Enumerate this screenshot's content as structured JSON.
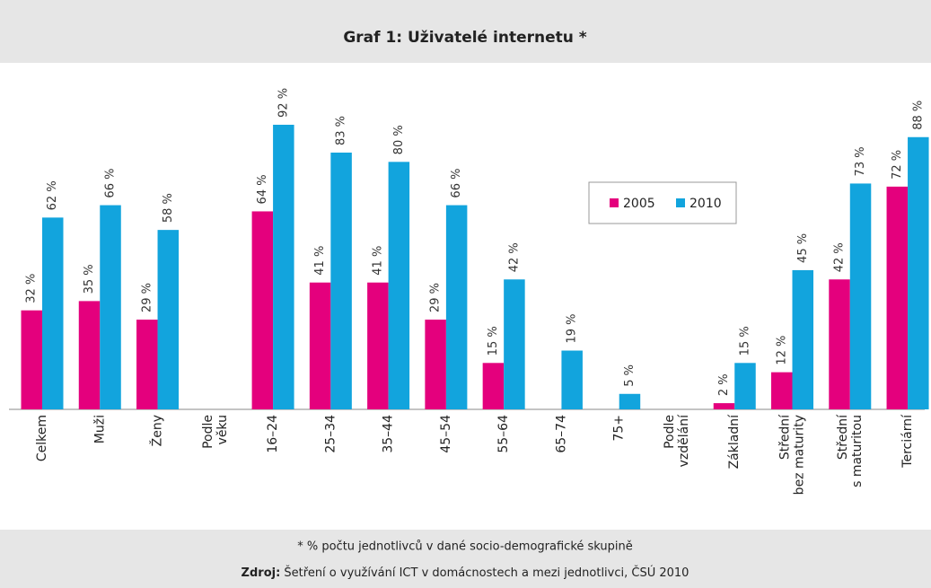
{
  "chart_data": {
    "type": "bar",
    "title": "Graf 1: Uživatelé internetu *",
    "categories": [
      [
        "Celkem"
      ],
      [
        "Muži"
      ],
      [
        "Ženy"
      ],
      [
        "Podle",
        "věku"
      ],
      [
        "16–24"
      ],
      [
        "25–34"
      ],
      [
        "35–44"
      ],
      [
        "45–54"
      ],
      [
        "55–64"
      ],
      [
        "65–74"
      ],
      [
        "75+"
      ],
      [
        "Podle",
        "vzdělání"
      ],
      [
        "Základní"
      ],
      [
        "Střední",
        "bez maturity"
      ],
      [
        "Střední",
        "s maturitou"
      ],
      [
        "Terciární"
      ]
    ],
    "series": [
      {
        "name": "2005",
        "color": "#e4007d",
        "values": [
          32,
          35,
          29,
          null,
          64,
          41,
          41,
          29,
          15,
          null,
          null,
          null,
          2,
          12,
          42,
          72
        ],
        "value_labels": [
          "32 %",
          "35 %",
          "29 %",
          null,
          "64 %",
          "41 %",
          "41 %",
          "29 %",
          "15 %",
          null,
          null,
          null,
          "2 %",
          "12 %",
          "42 %",
          "72 %"
        ]
      },
      {
        "name": "2010",
        "color": "#12a4dd",
        "values": [
          62,
          66,
          58,
          null,
          92,
          83,
          80,
          66,
          42,
          19,
          5,
          null,
          15,
          45,
          73,
          88
        ],
        "value_labels": [
          "62 %",
          "66 %",
          "58 %",
          null,
          "92 %",
          "83 %",
          "80 %",
          "66 %",
          "42 %",
          "19 %",
          "5 %",
          null,
          "15 %",
          "45 %",
          "73 %",
          "88 %"
        ]
      }
    ],
    "ylim": [
      0,
      100
    ],
    "legend": "upper-right"
  },
  "footer": {
    "note": "* % počtu jednotlivců v dané socio-demografické skupině",
    "source_label": "Zdroj:",
    "source_text": " Šetření o využívání ICT v domácnostech a mezi jednotlivci, ČSÚ 2010"
  }
}
